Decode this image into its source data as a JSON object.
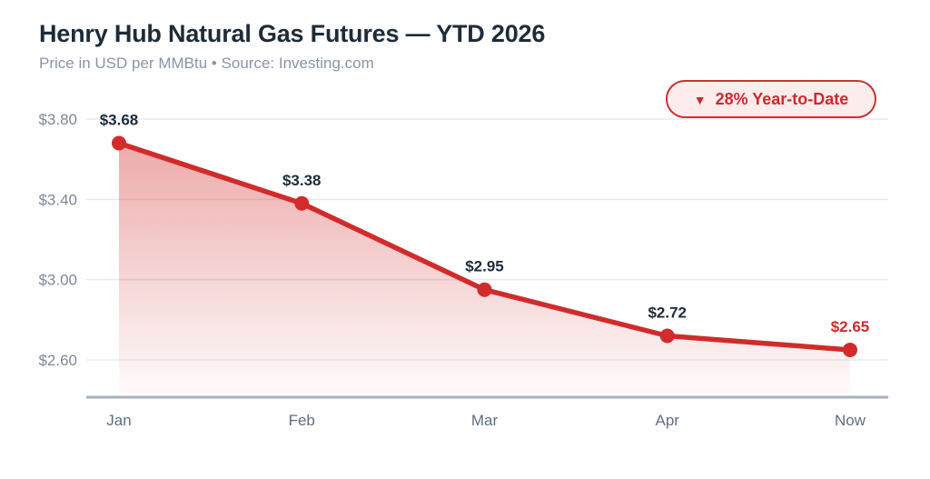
{
  "header": {
    "title": "Henry Hub Natural Gas Futures — YTD 2026",
    "subtitle": "Price in USD per MMBtu • Source: Investing.com"
  },
  "badge": {
    "arrow": "▼",
    "label": "28% Year-to-Date"
  },
  "colors": {
    "accent_red": "#d22b2b",
    "badge_border": "#cd3131",
    "badge_bg": "#fdecec",
    "title_navy": "#1d2b3a",
    "subtitle_gray": "#8a94a6",
    "ytick_label": "#7e8899",
    "xtick_label": "#5f6d82",
    "gridline": "#e7eaee",
    "axis_line": "#a9b1bf",
    "background": "#ffffff"
  },
  "chart_data": {
    "type": "line",
    "title": "Henry Hub Natural Gas Futures — YTD 2026",
    "subtitle": "Price in USD per MMBtu • Source: Investing.com",
    "categories": [
      "Jan",
      "Feb",
      "Mar",
      "Apr",
      "Now"
    ],
    "values": [
      3.68,
      3.38,
      2.95,
      2.72,
      2.65
    ],
    "point_labels": [
      "$3.68",
      "$3.38",
      "$2.95",
      "$2.72",
      "$2.65"
    ],
    "yticks": [
      3.8,
      3.4,
      3.0,
      2.6
    ],
    "ytick_labels": [
      "$3.80",
      "$3.40",
      "$3.00",
      "$2.60"
    ],
    "ylim": [
      2.41,
      3.8
    ],
    "xlabel": "",
    "ylabel": "Price in USD per MMBtu",
    "grid": true,
    "legend": false,
    "area_fill": true,
    "highlight_last_label": true,
    "ytd_change_pct": -28
  }
}
